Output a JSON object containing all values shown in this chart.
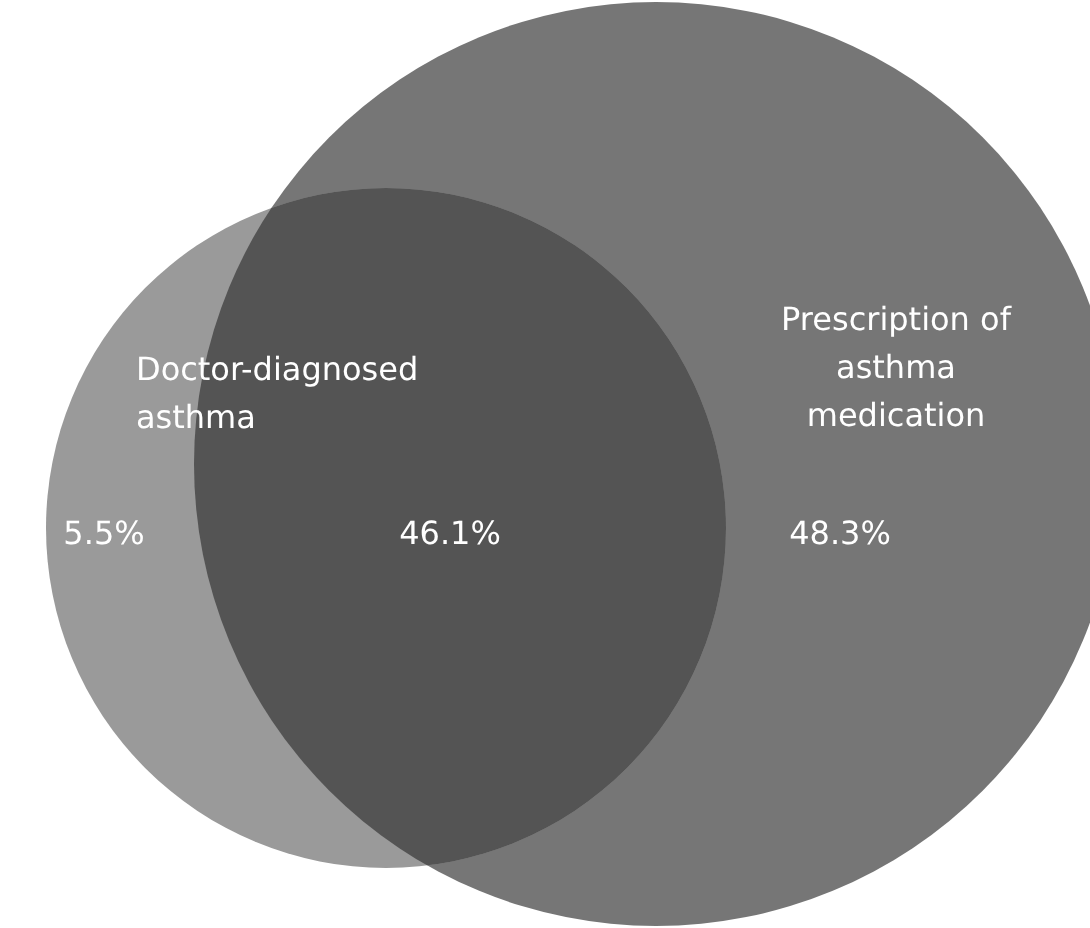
{
  "chart_data": {
    "type": "other",
    "annotations": [
      "Doctor-diagnosed asthma",
      "Prescription of asthma medication"
    ],
    "categories": [
      null,
      null,
      null
    ],
    "values": [
      5.5,
      46.1,
      48.3
    ],
    "value_labels": [
      "5.5%",
      "46.1%",
      "48.3%"
    ],
    "colors": [
      "#9a9a9a",
      "#545454",
      "#767676"
    ]
  }
}
